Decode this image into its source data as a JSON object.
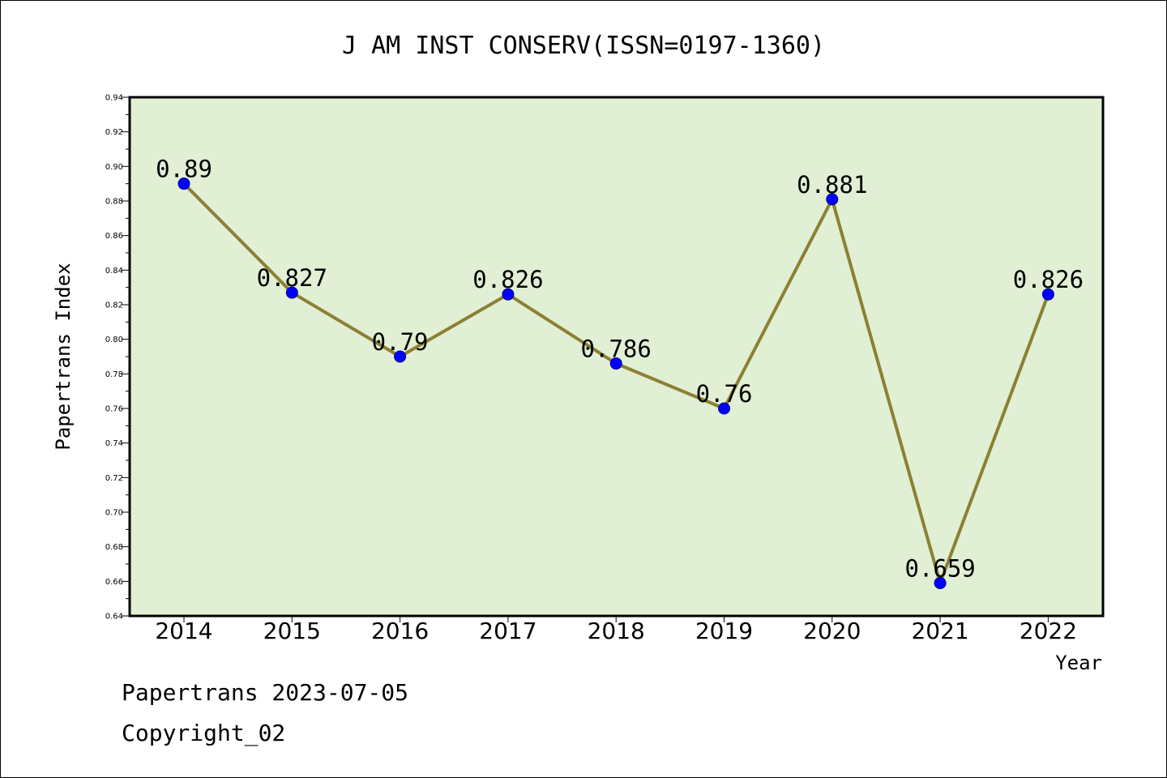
{
  "chart_data": {
    "type": "line",
    "title": "J AM INST CONSERV(ISSN=0197-1360)",
    "xlabel": "Year",
    "ylabel": "Papertrans Index",
    "categories": [
      "2014",
      "2015",
      "2016",
      "2017",
      "2018",
      "2019",
      "2020",
      "2021",
      "2022"
    ],
    "values": [
      0.89,
      0.827,
      0.79,
      0.826,
      0.786,
      0.76,
      0.881,
      0.659,
      0.826
    ],
    "data_labels": [
      "0.89",
      "0.827",
      "0.79",
      "0.826",
      "0.786",
      "0.76",
      "0.881",
      "0.659",
      "0.826"
    ],
    "ylim": [
      0.64,
      0.94
    ],
    "yticks": [
      "0.64",
      "0.66",
      "0.68",
      "0.70",
      "0.72",
      "0.74",
      "0.76",
      "0.78",
      "0.80",
      "0.82",
      "0.84",
      "0.86",
      "0.88",
      "0.90",
      "0.92",
      "0.94"
    ],
    "grid": false,
    "line_color": "#8c8033",
    "marker_color": "#0000ff",
    "plot_background": "#e1efd5"
  },
  "footer": {
    "line1": "Papertrans 2023-07-05",
    "line2": "Copyright_02"
  }
}
